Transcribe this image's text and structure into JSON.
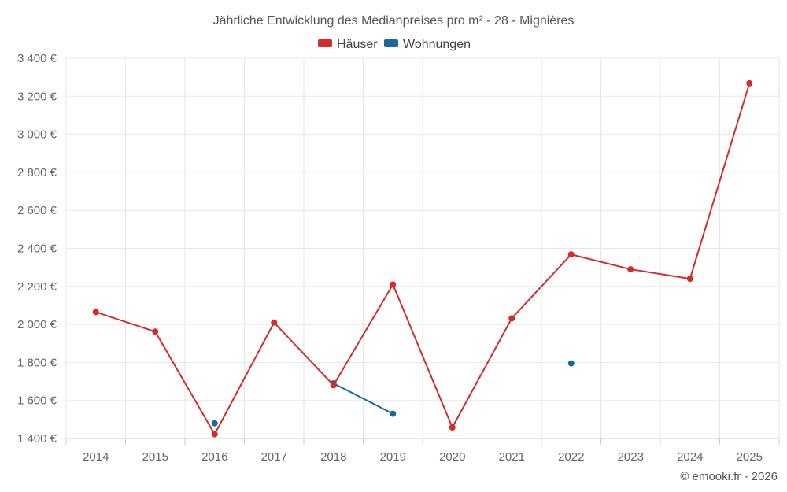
{
  "chart_data": {
    "type": "line",
    "title": "Jährliche Entwicklung des Medianpreises pro m² - 28 - Mignières",
    "categories": [
      "2014",
      "2015",
      "2016",
      "2017",
      "2018",
      "2019",
      "2020",
      "2021",
      "2022",
      "2023",
      "2024",
      "2025"
    ],
    "series": [
      {
        "name": "Häuser",
        "color": "#d42c2c",
        "values": [
          2065,
          1962,
          1422,
          2010,
          1680,
          2210,
          1458,
          2032,
          2368,
          2290,
          2240,
          3268
        ]
      },
      {
        "name": "Wohnungen",
        "color": "#1668a0",
        "values": [
          null,
          null,
          1480,
          null,
          1690,
          1530,
          null,
          null,
          1795,
          null,
          null,
          null
        ]
      }
    ],
    "ylim": [
      1400,
      3400
    ],
    "yticks": [
      1400,
      1600,
      1800,
      2000,
      2200,
      2400,
      2600,
      2800,
      3000,
      3200,
      3400
    ],
    "ytick_labels": [
      "1 400 €",
      "1 600 €",
      "1 800 €",
      "2 000 €",
      "2 200 €",
      "2 400 €",
      "2 600 €",
      "2 800 €",
      "3 000 €",
      "3 200 €",
      "3 400 €"
    ],
    "legend_position": "top-center",
    "grid": true,
    "credit": "© emooki.fr - 2026"
  }
}
